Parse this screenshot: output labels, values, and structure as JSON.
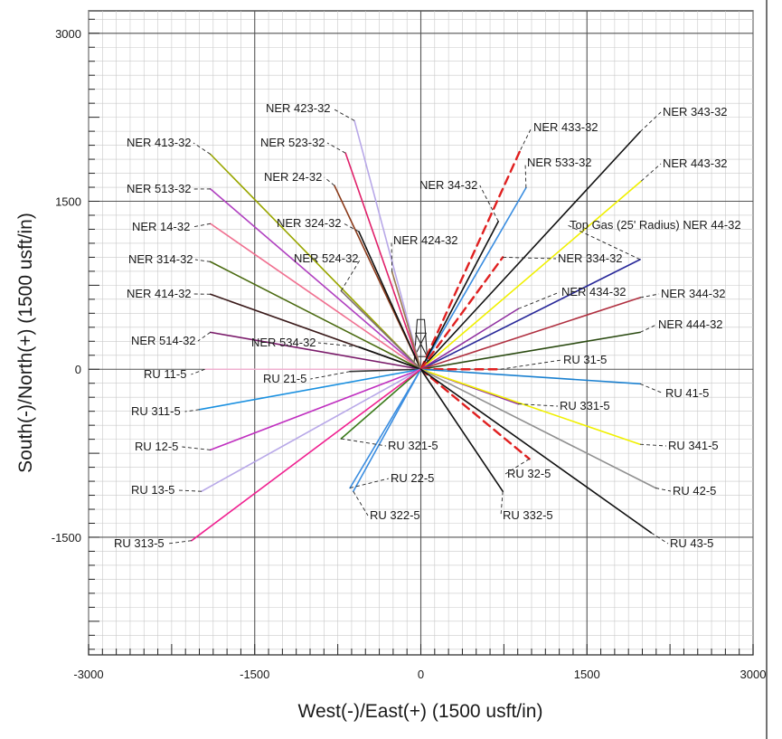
{
  "chart_data": {
    "type": "scatter",
    "title": "",
    "xlabel": "West(-)/East(+) (1500 usft/in)",
    "ylabel": "South(-)/North(+) (1500 usft/in)",
    "xlim": [
      -3000,
      3000
    ],
    "ylim": [
      -2550,
      3200
    ],
    "x_ticks": [
      -3000,
      -1500,
      0,
      1500,
      3000
    ],
    "y_ticks": [
      3000,
      1500,
      0,
      -1500
    ],
    "x_tick_labels": [
      "-3000",
      "-1500",
      "0",
      "1500",
      "3000"
    ],
    "y_tick_labels": [
      "3000",
      "1500",
      "0",
      "-1500"
    ],
    "grid": true,
    "origin": [
      0,
      0
    ],
    "series": [
      {
        "name": "NER 423-32",
        "x": -600,
        "y": 2220,
        "color": "#b8a8e8",
        "dash": false
      },
      {
        "name": "NER 433-32",
        "x": 900,
        "y": 1960,
        "color": "#e02020",
        "dash": true
      },
      {
        "name": "NER 343-32",
        "x": 1980,
        "y": 2120,
        "color": "#111111",
        "dash": false
      },
      {
        "name": "NER 413-32",
        "x": -1900,
        "y": 1920,
        "color": "#99a600",
        "dash": false
      },
      {
        "name": "NER 523-32",
        "x": -680,
        "y": 1930,
        "color": "#e0206a",
        "dash": false
      },
      {
        "name": "NER 533-32",
        "x": 950,
        "y": 1620,
        "color": "#3a8de0",
        "dash": false
      },
      {
        "name": "NER 443-32",
        "x": 1990,
        "y": 1680,
        "color": "#f0f000",
        "dash": false
      },
      {
        "name": "NER 513-32",
        "x": -1900,
        "y": 1610,
        "color": "#b040c0",
        "dash": false
      },
      {
        "name": "NER 24-32",
        "x": -780,
        "y": 1640,
        "color": "#8b3a1a",
        "dash": false
      },
      {
        "name": "NER 34-32",
        "x": 700,
        "y": 1320,
        "color": "#111111",
        "dash": false
      },
      {
        "name": "NER 14-32",
        "x": -1900,
        "y": 1300,
        "color": "#f07090",
        "dash": false
      },
      {
        "name": "NER 324-32",
        "x": -560,
        "y": 1230,
        "color": "#111111",
        "dash": false
      },
      {
        "name": "NER 424-32",
        "x": -260,
        "y": 870,
        "color": "#9a7a50",
        "dash": false
      },
      {
        "name": "Top Gas (25' Radius) NER 44-32",
        "x": 1980,
        "y": 980,
        "color": "#2a2a9a",
        "dash": false
      },
      {
        "name": "NER 314-32",
        "x": -1900,
        "y": 960,
        "color": "#4a6a10",
        "dash": false
      },
      {
        "name": "NER 524-32",
        "x": -720,
        "y": 700,
        "color": "#807070",
        "dash": false
      },
      {
        "name": "NER 334-32",
        "x": 740,
        "y": 1000,
        "color": "#e02020",
        "dash": true
      },
      {
        "name": "NER 414-32",
        "x": -1900,
        "y": 670,
        "color": "#3a1a1a",
        "dash": false
      },
      {
        "name": "NER 434-32",
        "x": 880,
        "y": 540,
        "color": "#9030a0",
        "dash": false
      },
      {
        "name": "NER 344-32",
        "x": 1980,
        "y": 640,
        "color": "#b03040",
        "dash": false
      },
      {
        "name": "NER 444-32",
        "x": 1980,
        "y": 330,
        "color": "#2a4a10",
        "dash": false
      },
      {
        "name": "NER 514-32",
        "x": -1900,
        "y": 330,
        "color": "#7a1a6a",
        "dash": false
      },
      {
        "name": "NER 534-32",
        "x": -560,
        "y": 200,
        "color": "#111111",
        "dash": false
      },
      {
        "name": "RU 11-5",
        "x": -1950,
        "y": 0,
        "color": "#f0b0d0",
        "dash": false
      },
      {
        "name": "RU 21-5",
        "x": -640,
        "y": -20,
        "color": "#333333",
        "dash": false
      },
      {
        "name": "RU 31-5",
        "x": 720,
        "y": 0,
        "color": "#e02020",
        "dash": true
      },
      {
        "name": "RU 41-5",
        "x": 1980,
        "y": -130,
        "color": "#1a80d0",
        "dash": false
      },
      {
        "name": "RU 311-5",
        "x": -2000,
        "y": -360,
        "color": "#1a90e0",
        "dash": false
      },
      {
        "name": "RU 331-5",
        "x": 880,
        "y": -310,
        "color": "#9030a0",
        "dash": false
      },
      {
        "name": "RU 12-5",
        "x": -1900,
        "y": -720,
        "color": "#c030c0",
        "dash": false
      },
      {
        "name": "RU 341-5",
        "x": 1980,
        "y": -670,
        "color": "#f0f000",
        "dash": false
      },
      {
        "name": "RU 321-5",
        "x": -720,
        "y": -620,
        "color": "#3a7a1a",
        "dash": false
      },
      {
        "name": "RU 32-5",
        "x": 980,
        "y": -800,
        "color": "#e02020",
        "dash": true
      },
      {
        "name": "RU 13-5",
        "x": -1980,
        "y": -1090,
        "color": "#b8a8e8",
        "dash": false
      },
      {
        "name": "RU 22-5",
        "x": -640,
        "y": -1060,
        "color": "#3a8de0",
        "dash": false
      },
      {
        "name": "RU 42-5",
        "x": 2120,
        "y": -1060,
        "color": "#909090",
        "dash": false
      },
      {
        "name": "RU 332-5",
        "x": 740,
        "y": -1090,
        "color": "#111111",
        "dash": false
      },
      {
        "name": "RU 322-5",
        "x": -610,
        "y": -1090,
        "color": "#3a8de0",
        "dash": false
      },
      {
        "name": "RU 313-5",
        "x": -2070,
        "y": -1530,
        "color": "#f02090",
        "dash": false
      },
      {
        "name": "RU 43-5",
        "x": 2080,
        "y": -1460,
        "color": "#111111",
        "dash": false
      }
    ]
  }
}
